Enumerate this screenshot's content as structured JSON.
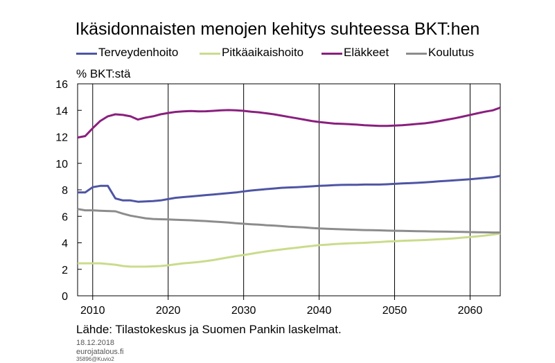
{
  "title": "Ikäsidonnaisten menojen kehitys suhteessa BKT:hen",
  "ylabel": "% BKT:stä",
  "source": "Lähde: Tilastokeskus ja Suomen Pankin laskelmat.",
  "footer": {
    "date": "18.12.2018",
    "site": "eurojatalous.fi",
    "code": "35896@Kuvio2"
  },
  "chart_data": {
    "type": "line",
    "title": "Ikäsidonnaisten menojen kehitys suhteessa BKT:hen",
    "ylabel": "% BKT:stä",
    "xlim": [
      2008,
      2064
    ],
    "ylim": [
      0,
      16
    ],
    "xticks": [
      2010,
      2020,
      2030,
      2040,
      2050,
      2060
    ],
    "yticks": [
      0,
      2,
      4,
      6,
      8,
      10,
      12,
      14,
      16
    ],
    "grid": "vertical",
    "legend": "top",
    "x": [
      2008,
      2009,
      2010,
      2011,
      2012,
      2013,
      2014,
      2015,
      2016,
      2017,
      2018,
      2019,
      2020,
      2021,
      2022,
      2023,
      2024,
      2025,
      2026,
      2027,
      2028,
      2029,
      2030,
      2031,
      2032,
      2033,
      2034,
      2035,
      2036,
      2037,
      2038,
      2039,
      2040,
      2041,
      2042,
      2043,
      2044,
      2045,
      2046,
      2047,
      2048,
      2049,
      2050,
      2051,
      2052,
      2053,
      2054,
      2055,
      2056,
      2057,
      2058,
      2059,
      2060,
      2061,
      2062,
      2063,
      2064
    ],
    "series": [
      {
        "name": "Terveydenhoito",
        "color": "#4e55a4",
        "values": [
          7.8,
          7.8,
          8.2,
          8.3,
          8.3,
          7.35,
          7.2,
          7.2,
          7.1,
          7.12,
          7.15,
          7.2,
          7.3,
          7.4,
          7.45,
          7.5,
          7.55,
          7.6,
          7.65,
          7.7,
          7.75,
          7.8,
          7.88,
          7.95,
          8.0,
          8.05,
          8.1,
          8.15,
          8.18,
          8.2,
          8.23,
          8.26,
          8.3,
          8.32,
          8.35,
          8.37,
          8.38,
          8.38,
          8.4,
          8.4,
          8.4,
          8.42,
          8.45,
          8.48,
          8.5,
          8.53,
          8.56,
          8.6,
          8.65,
          8.68,
          8.72,
          8.76,
          8.8,
          8.85,
          8.9,
          8.95,
          9.05
        ]
      },
      {
        "name": "Pitkäaikaishoito",
        "color": "#c9dc8c",
        "values": [
          2.45,
          2.45,
          2.45,
          2.45,
          2.4,
          2.35,
          2.25,
          2.2,
          2.2,
          2.2,
          2.22,
          2.25,
          2.3,
          2.38,
          2.45,
          2.5,
          2.55,
          2.62,
          2.7,
          2.8,
          2.9,
          3.0,
          3.08,
          3.17,
          3.27,
          3.35,
          3.43,
          3.5,
          3.57,
          3.63,
          3.7,
          3.76,
          3.82,
          3.86,
          3.9,
          3.93,
          3.96,
          3.98,
          4.0,
          4.03,
          4.06,
          4.1,
          4.12,
          4.15,
          4.17,
          4.19,
          4.21,
          4.24,
          4.27,
          4.3,
          4.34,
          4.39,
          4.44,
          4.49,
          4.55,
          4.62,
          4.7
        ]
      },
      {
        "name": "Eläkkeet",
        "color": "#8a1f7e",
        "values": [
          11.95,
          12.05,
          12.65,
          13.2,
          13.55,
          13.7,
          13.65,
          13.55,
          13.3,
          13.45,
          13.55,
          13.7,
          13.8,
          13.88,
          13.92,
          13.95,
          13.92,
          13.93,
          13.96,
          14.0,
          14.02,
          14.0,
          13.96,
          13.9,
          13.85,
          13.78,
          13.7,
          13.6,
          13.5,
          13.4,
          13.3,
          13.2,
          13.12,
          13.06,
          13.0,
          12.98,
          12.95,
          12.92,
          12.88,
          12.85,
          12.82,
          12.82,
          12.85,
          12.88,
          12.92,
          12.97,
          13.02,
          13.1,
          13.2,
          13.3,
          13.4,
          13.52,
          13.65,
          13.78,
          13.9,
          14.0,
          14.2
        ]
      },
      {
        "name": "Koulutus",
        "color": "#8c8c8c",
        "values": [
          6.55,
          6.45,
          6.45,
          6.42,
          6.4,
          6.38,
          6.2,
          6.05,
          5.95,
          5.85,
          5.8,
          5.78,
          5.76,
          5.74,
          5.72,
          5.7,
          5.67,
          5.64,
          5.6,
          5.57,
          5.53,
          5.48,
          5.44,
          5.4,
          5.37,
          5.33,
          5.3,
          5.26,
          5.22,
          5.19,
          5.16,
          5.12,
          5.08,
          5.06,
          5.04,
          5.02,
          5.0,
          4.98,
          4.96,
          4.95,
          4.94,
          4.92,
          4.91,
          4.9,
          4.89,
          4.88,
          4.87,
          4.86,
          4.85,
          4.84,
          4.83,
          4.82,
          4.81,
          4.8,
          4.79,
          4.78,
          4.78
        ]
      }
    ]
  }
}
